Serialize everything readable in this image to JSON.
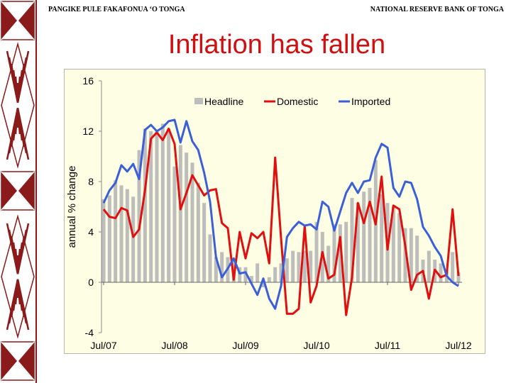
{
  "header": {
    "left": "PANGIKE  PULE  FAKAFONUA  ‘O  TONGA",
    "right": "NATIONAL RESERVE BANK OF TONGA"
  },
  "slide_title": "Inflation has fallen",
  "colors": {
    "headline": "#bdbdbd",
    "domestic": "#e01010",
    "imported": "#3a5fd8",
    "title": "#d01010",
    "pattern": "#8b1a1a"
  },
  "chart_data": {
    "type": "bar+line",
    "title": "",
    "xlabel": "",
    "ylabel": "annual % change",
    "ylim": [
      -4,
      16
    ],
    "yticks": [
      -4,
      0,
      4,
      8,
      12,
      16
    ],
    "xticks": [
      "Jul/07",
      "Jul/08",
      "Jul/09",
      "Jul/10",
      "Jul/11",
      "Jul/12"
    ],
    "x_start": "Jul/07",
    "x_end": "Jul/12",
    "frequency": "monthly",
    "legend": {
      "placement": "top",
      "entries": [
        "Headline",
        "Domestic",
        "Imported"
      ]
    },
    "series": [
      {
        "name": "Headline",
        "kind": "bar",
        "values": [
          6.6,
          6.9,
          8.1,
          7.7,
          7.4,
          6.8,
          10.5,
          12.2,
          12.0,
          12.0,
          12.6,
          12.2,
          9.2,
          10.9,
          10.3,
          9.5,
          7.9,
          6.3,
          3.8,
          2.0,
          2.4,
          2.0,
          1.9,
          1.2,
          1.2,
          0.5,
          1.5,
          -0.4,
          0.4,
          1.2,
          1.5,
          1.9,
          2.5,
          2.4,
          2.5,
          2.5,
          4.8,
          4.0,
          2.9,
          4.6,
          4.6,
          4.8,
          6.7,
          6.3,
          7.2,
          7.5,
          9.7,
          7.0,
          6.3,
          6.0,
          5.5,
          4.3,
          4.3,
          3.7,
          1.8,
          2.5,
          1.8,
          1.5,
          1.0,
          2.4,
          0.8
        ]
      },
      {
        "name": "Domestic",
        "kind": "line",
        "values": [
          5.8,
          5.2,
          5.1,
          5.9,
          5.7,
          3.6,
          4.2,
          7.3,
          11.4,
          11.9,
          11.3,
          12.2,
          11.0,
          5.8,
          7.1,
          8.5,
          7.7,
          6.9,
          7.3,
          7.4,
          4.7,
          4.3,
          0.2,
          4.0,
          1.9,
          3.9,
          3.5,
          4.0,
          1.5,
          9.9,
          3.5,
          -2.5,
          -2.5,
          -2.1,
          4.5,
          -1.6,
          -0.3,
          2.4,
          0.3,
          0.6,
          3.6,
          -2.6,
          0.4,
          6.3,
          4.7,
          6.4,
          4.6,
          8.4,
          2.6,
          6.1,
          5.8,
          2.9,
          -0.6,
          0.6,
          0.9,
          -1.3,
          1.0,
          0.4,
          0.6,
          5.8,
          0.5
        ]
      },
      {
        "name": "Imported",
        "kind": "line",
        "values": [
          6.3,
          7.3,
          7.9,
          9.3,
          8.8,
          9.4,
          8.2,
          12.1,
          12.5,
          12.0,
          12.3,
          12.8,
          12.9,
          11.1,
          12.8,
          11.2,
          10.5,
          8.7,
          6.4,
          2.0,
          0.4,
          1.1,
          1.9,
          0.7,
          0.8,
          -0.1,
          -1.0,
          0.3,
          -1.3,
          -2.1,
          -0.3,
          3.6,
          4.3,
          4.8,
          4.5,
          4.6,
          4.2,
          6.4,
          6.0,
          4.1,
          5.6,
          7.1,
          7.9,
          7.1,
          8.0,
          8.1,
          9.9,
          11.0,
          10.7,
          7.5,
          6.8,
          8.0,
          7.9,
          6.6,
          4.4,
          3.7,
          2.8,
          2.1,
          0.5,
          0.0,
          -0.3
        ]
      }
    ]
  }
}
